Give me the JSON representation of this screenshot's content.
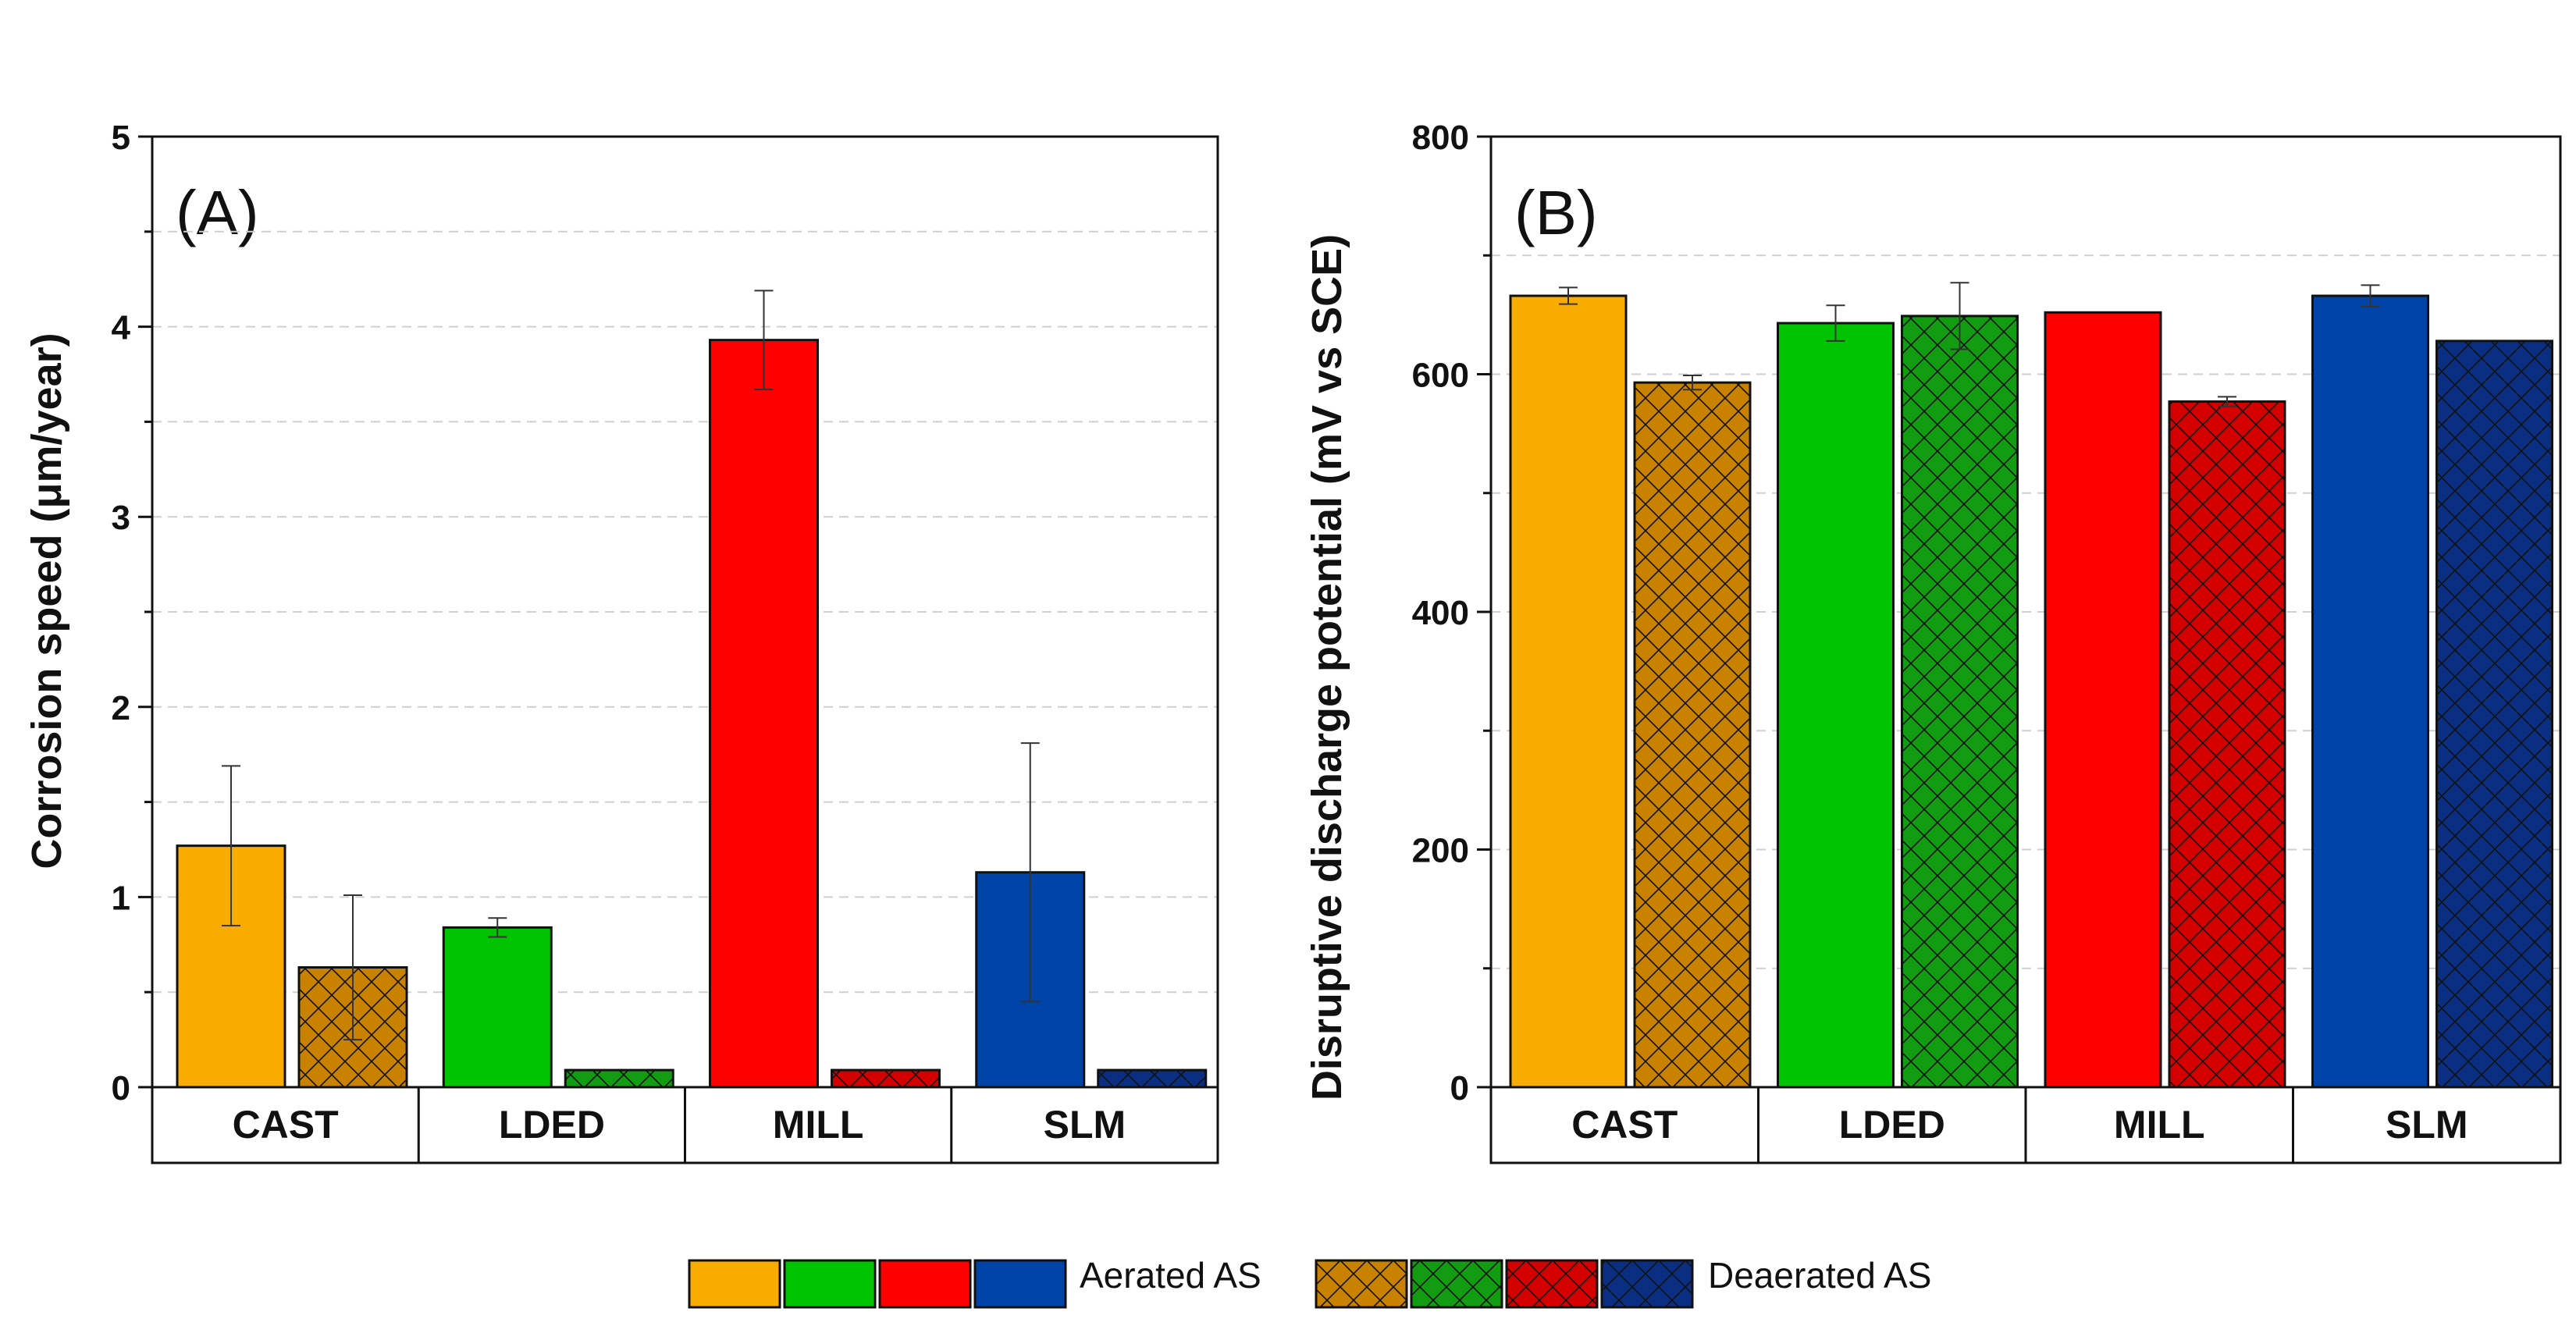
{
  "chart_data": [
    {
      "type": "bar",
      "panel_label": "(A)",
      "title": "",
      "xlabel": "",
      "ylabel": "Corrosion speed (μm/year)",
      "ylim": [
        0,
        5
      ],
      "yticks": [
        "0",
        "1",
        "2",
        "3",
        "4",
        "5"
      ],
      "grid": true,
      "categories": [
        "CAST",
        "LDED",
        "MILL",
        "SLM"
      ],
      "series": [
        {
          "name": "Aerated AS",
          "values": [
            1.27,
            0.84,
            3.93,
            1.13
          ],
          "errors": [
            0.42,
            0.05,
            0.26,
            0.68
          ]
        },
        {
          "name": "Deaerated AS",
          "values": [
            0.63,
            0.09,
            0.09,
            0.09
          ],
          "errors": [
            0.38,
            0,
            0,
            0
          ]
        }
      ]
    },
    {
      "type": "bar",
      "panel_label": "(B)",
      "title": "",
      "xlabel": "",
      "ylabel": "Disruptive discharge potential (mV vs SCE)",
      "ylim": [
        0,
        800
      ],
      "yticks": [
        "0",
        "200",
        "400",
        "600",
        "800"
      ],
      "grid": true,
      "categories": [
        "CAST",
        "LDED",
        "MILL",
        "SLM"
      ],
      "series": [
        {
          "name": "Aerated AS",
          "values": [
            666,
            643,
            652,
            666
          ],
          "errors": [
            7,
            15,
            0,
            9
          ]
        },
        {
          "name": "Deaerated AS",
          "values": [
            593,
            649,
            577,
            628
          ],
          "errors": [
            6,
            28,
            4,
            0
          ]
        }
      ]
    }
  ],
  "colors": {
    "aerated": [
      "#F9AC00",
      "#00C400",
      "#FF0000",
      "#0044A8"
    ],
    "deaerated": [
      "#C88200",
      "#129C12",
      "#D40000",
      "#0A2F82"
    ]
  },
  "legend": {
    "aerated_label": "Aerated AS",
    "deaerated_label": "Deaerated AS"
  }
}
